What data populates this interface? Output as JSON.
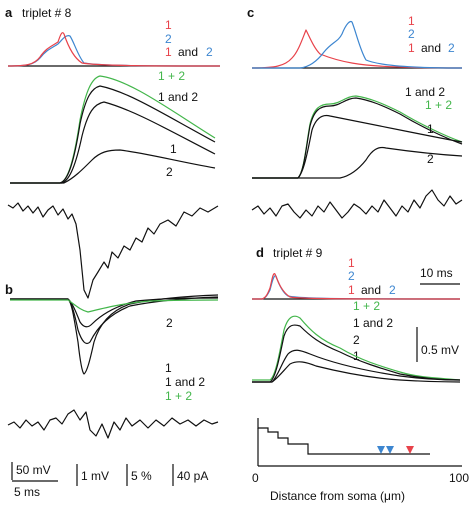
{
  "colors": {
    "red": "#e8424a",
    "blue": "#3d86d0",
    "green": "#43b64b",
    "black": "#111111"
  },
  "panel_a": {
    "letter": "a",
    "title": "triplet # 8",
    "legend_top": {
      "l1": "1",
      "l2": "2",
      "l3a": "1",
      "l3b": "and",
      "l3c": "2"
    },
    "legend_mid": {
      "sum": "1 + 2",
      "both": "1 and 2"
    },
    "trace_1": "1",
    "trace_2": "2"
  },
  "panel_b": {
    "letter": "b",
    "label_2": "2",
    "legend": {
      "l1": "1",
      "l2": "1 and 2",
      "l3": "1 + 2"
    }
  },
  "panel_c": {
    "letter": "c",
    "legend_top": {
      "l1": "1",
      "l2": "2",
      "l3a": "1",
      "l3b": "and",
      "l3c": "2"
    },
    "legend_mid": {
      "both": "1 and 2",
      "sum": "1 + 2"
    },
    "trace_1": "1",
    "trace_2": "2"
  },
  "panel_d": {
    "letter": "d",
    "title": "triplet # 9",
    "legend_top": {
      "l1": "1",
      "l2": "2",
      "l3a": "1",
      "l3b": "and",
      "l3c": "2"
    },
    "scale_time": "10 ms",
    "legend_mid": {
      "sum": "1 + 2",
      "both": "1 and 2",
      "t2": "2",
      "t1": "1"
    },
    "scale_amp": "0.5 mV",
    "axis": {
      "label": "Distance from soma (μm)",
      "tick_min": "0",
      "tick_max": "100"
    }
  },
  "scalebars": {
    "v": "50 mV",
    "t": "5 ms",
    "mv": "1 mV",
    "pct": "5 %",
    "pa": "40 pA"
  }
}
